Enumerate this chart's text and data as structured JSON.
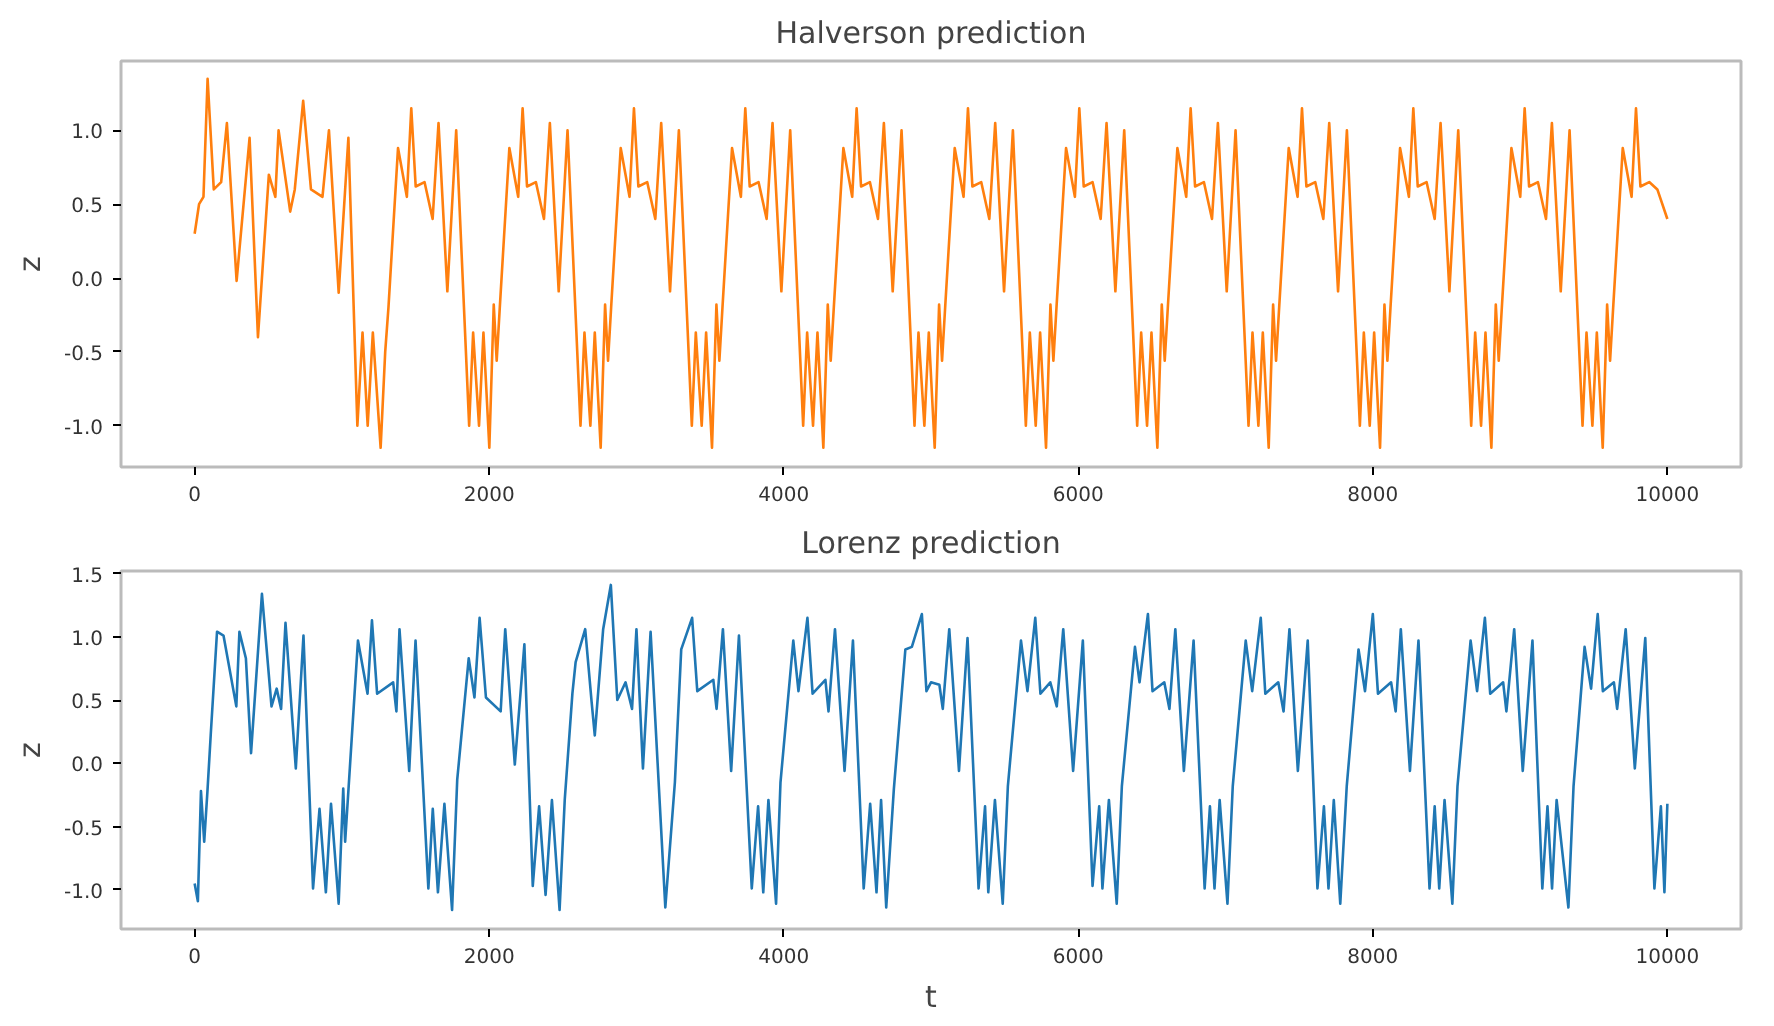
{
  "chart_data": [
    {
      "type": "line",
      "title": "Halverson prediction",
      "ylabel": "z",
      "grid": false,
      "xlim": [
        -500,
        10500
      ],
      "ylim": [
        -1.28,
        1.47
      ],
      "xticks": [
        0,
        2000,
        4000,
        6000,
        8000,
        10000
      ],
      "yticks": [
        {
          "value": -1,
          "label": "-1.0"
        },
        {
          "value": -0.5,
          "label": "-0.5"
        },
        {
          "value": 0,
          "label": "0.0"
        },
        {
          "value": 0.5,
          "label": "0.5"
        },
        {
          "value": 1,
          "label": "1.0"
        }
      ],
      "x": [
        0,
        30,
        60,
        88,
        130,
        180,
        219,
        285,
        373,
        430,
        504,
        548,
        570,
        649,
        680,
        737,
        790,
        868,
        912,
        978,
        1044,
        1105,
        1140,
        1175,
        1210,
        1263,
        1294,
        1316,
        1381,
        1441,
        1471,
        1501,
        1561,
        1616,
        1656,
        1716,
        1776,
        1864,
        1891,
        1931,
        1961,
        2001,
        2031,
        2051,
        2072,
        2137,
        2197,
        2227,
        2257,
        2317,
        2372,
        2412,
        2472,
        2532,
        2620,
        2647,
        2687,
        2717,
        2757,
        2787,
        2807,
        2828,
        2893,
        2953,
        2983,
        3013,
        3073,
        3128,
        3168,
        3228,
        3288,
        3376,
        3403,
        3443,
        3473,
        3513,
        3543,
        3563,
        3584,
        3649,
        3709,
        3739,
        3769,
        3829,
        3884,
        3924,
        3984,
        4044,
        4132,
        4159,
        4199,
        4229,
        4269,
        4299,
        4319,
        4340,
        4405,
        4465,
        4495,
        4525,
        4585,
        4640,
        4680,
        4740,
        4800,
        4888,
        4915,
        4955,
        4985,
        5025,
        5055,
        5075,
        5096,
        5161,
        5221,
        5251,
        5281,
        5341,
        5396,
        5436,
        5496,
        5556,
        5644,
        5671,
        5711,
        5741,
        5781,
        5811,
        5831,
        5852,
        5917,
        5977,
        6007,
        6037,
        6097,
        6152,
        6192,
        6252,
        6312,
        6400,
        6427,
        6467,
        6497,
        6537,
        6567,
        6587,
        6608,
        6673,
        6733,
        6763,
        6793,
        6853,
        6908,
        6948,
        7008,
        7068,
        7156,
        7183,
        7223,
        7253,
        7293,
        7323,
        7343,
        7364,
        7429,
        7489,
        7519,
        7549,
        7609,
        7664,
        7704,
        7764,
        7824,
        7912,
        7939,
        7979,
        8009,
        8049,
        8079,
        8099,
        8120,
        8185,
        8245,
        8275,
        8305,
        8365,
        8420,
        8460,
        8520,
        8580,
        8668,
        8695,
        8735,
        8765,
        8805,
        8835,
        8855,
        8876,
        8941,
        9001,
        9031,
        9061,
        9121,
        9176,
        9216,
        9276,
        9336,
        9424,
        9451,
        9491,
        9521,
        9561,
        9591,
        9611,
        9632,
        9697,
        9757,
        9787,
        9817,
        9877,
        9932,
        10000
      ],
      "series": [
        {
          "color": "#ff7f0e",
          "values": [
            0.3,
            0.5,
            0.55,
            1.35,
            0.6,
            0.65,
            1.05,
            -0.02,
            0.95,
            -0.4,
            0.7,
            0.55,
            1.0,
            0.45,
            0.6,
            1.2,
            0.6,
            0.55,
            1.0,
            -0.1,
            0.95,
            -1.0,
            -0.37,
            -1.0,
            -0.37,
            -1.15,
            -0.5,
            -0.2,
            0.88,
            0.55,
            1.15,
            0.62,
            0.65,
            0.4,
            1.05,
            -0.09,
            1.0,
            -1.0,
            -0.37,
            -1.0,
            -0.37,
            -1.15,
            -0.18,
            -0.56,
            -0.2,
            0.88,
            0.55,
            1.15,
            0.62,
            0.65,
            0.4,
            1.05,
            -0.09,
            1.0,
            -1.0,
            -0.37,
            -1.0,
            -0.37,
            -1.15,
            -0.18,
            -0.56,
            -0.2,
            0.88,
            0.55,
            1.15,
            0.62,
            0.65,
            0.4,
            1.05,
            -0.09,
            1.0,
            -1.0,
            -0.37,
            -1.0,
            -0.37,
            -1.15,
            -0.18,
            -0.56,
            -0.2,
            0.88,
            0.55,
            1.15,
            0.62,
            0.65,
            0.4,
            1.05,
            -0.09,
            1.0,
            -1.0,
            -0.37,
            -1.0,
            -0.37,
            -1.15,
            -0.18,
            -0.56,
            -0.2,
            0.88,
            0.55,
            1.15,
            0.62,
            0.65,
            0.4,
            1.05,
            -0.09,
            1.0,
            -1.0,
            -0.37,
            -1.0,
            -0.37,
            -1.15,
            -0.18,
            -0.56,
            -0.2,
            0.88,
            0.55,
            1.15,
            0.62,
            0.65,
            0.4,
            1.05,
            -0.09,
            1.0,
            -1.0,
            -0.37,
            -1.0,
            -0.37,
            -1.15,
            -0.18,
            -0.56,
            -0.2,
            0.88,
            0.55,
            1.15,
            0.62,
            0.65,
            0.4,
            1.05,
            -0.09,
            1.0,
            -1.0,
            -0.37,
            -1.0,
            -0.37,
            -1.15,
            -0.18,
            -0.56,
            -0.2,
            0.88,
            0.55,
            1.15,
            0.62,
            0.65,
            0.4,
            1.05,
            -0.09,
            1.0,
            -1.0,
            -0.37,
            -1.0,
            -0.37,
            -1.15,
            -0.18,
            -0.56,
            -0.2,
            0.88,
            0.55,
            1.15,
            0.62,
            0.65,
            0.4,
            1.05,
            -0.09,
            1.0,
            -1.0,
            -0.37,
            -1.0,
            -0.37,
            -1.15,
            -0.18,
            -0.56,
            -0.2,
            0.88,
            0.55,
            1.15,
            0.62,
            0.65,
            0.4,
            1.05,
            -0.09,
            1.0,
            -1.0,
            -0.37,
            -1.0,
            -0.37,
            -1.15,
            -0.18,
            -0.56,
            -0.2,
            0.88,
            0.55,
            1.15,
            0.62,
            0.65,
            0.4,
            1.05,
            -0.09,
            1.0,
            -1.0,
            -0.37,
            -1.0,
            -0.37,
            -1.15,
            -0.18,
            -0.56,
            -0.2,
            0.88,
            0.55,
            1.15,
            0.62,
            0.65,
            0.6,
            0.4
          ]
        }
      ]
    },
    {
      "type": "line",
      "title": "Lorenz prediction",
      "xlabel": "t",
      "ylabel": "z",
      "grid": false,
      "xlim": [
        -500,
        10500
      ],
      "ylim": [
        -1.31,
        1.52
      ],
      "xticks": [
        0,
        2000,
        4000,
        6000,
        8000,
        10000
      ],
      "yticks": [
        {
          "value": -1,
          "label": "-1.0"
        },
        {
          "value": -0.5,
          "label": "-0.5"
        },
        {
          "value": 0,
          "label": "0.0"
        },
        {
          "value": 0.5,
          "label": "0.5"
        },
        {
          "value": 1,
          "label": "1.0"
        },
        {
          "value": 1.5,
          "label": "1.5"
        }
      ],
      "x": [
        0,
        22,
        43,
        65,
        87,
        109,
        152,
        196,
        283,
        304,
        348,
        383,
        457,
        522,
        557,
        587,
        617,
        687,
        739,
        804,
        848,
        891,
        926,
        978,
        1009,
        1022,
        1109,
        1174,
        1204,
        1239,
        1348,
        1370,
        1391,
        1457,
        1500,
        1587,
        1617,
        1652,
        1696,
        1748,
        1783,
        1861,
        1900,
        1935,
        1978,
        2078,
        2109,
        2174,
        2239,
        2296,
        2339,
        2383,
        2426,
        2478,
        2513,
        2565,
        2587,
        2652,
        2696,
        2717,
        2774,
        2826,
        2870,
        2926,
        2970,
        3000,
        3044,
        3096,
        3196,
        3261,
        3304,
        3378,
        3413,
        3522,
        3544,
        3587,
        3643,
        3696,
        3783,
        3826,
        3861,
        3896,
        3948,
        3978,
        4065,
        4100,
        4161,
        4196,
        4283,
        4304,
        4348,
        4413,
        4470,
        4543,
        4587,
        4630,
        4661,
        4696,
        4748,
        4826,
        4870,
        4938,
        4969,
        5000,
        5057,
        5080,
        5124,
        5190,
        5248,
        5323,
        5367,
        5389,
        5434,
        5487,
        5522,
        5611,
        5655,
        5708,
        5743,
        5810,
        5854,
        5898,
        5965,
        6031,
        6097,
        6142,
        6164,
        6208,
        6261,
        6296,
        6385,
        6416,
        6473,
        6504,
        6584,
        6619,
        6659,
        6717,
        6783,
        6858,
        6894,
        6925,
        6960,
        7013,
        7049,
        7137,
        7181,
        7239,
        7270,
        7358,
        7394,
        7434,
        7491,
        7558,
        7624,
        7668,
        7699,
        7735,
        7779,
        7823,
        7903,
        7947,
        8000,
        8035,
        8124,
        8155,
        8190,
        8252,
        8310,
        8385,
        8420,
        8451,
        8487,
        8540,
        8575,
        8664,
        8708,
        8761,
        8797,
        8885,
        8907,
        8960,
        9018,
        9084,
        9151,
        9186,
        9217,
        9248,
        9328,
        9363,
        9438,
        9482,
        9527,
        9562,
        9637,
        9659,
        9717,
        9779,
        9850,
        9912,
        9956,
        9980,
        10000
      ],
      "series": [
        {
          "color": "#1f77b4",
          "values": [
            -0.95,
            -1.09,
            -0.22,
            -0.62,
            -0.22,
            0.22,
            1.04,
            1.01,
            0.45,
            1.04,
            0.83,
            0.08,
            1.34,
            0.45,
            0.59,
            0.43,
            1.11,
            -0.04,
            1.01,
            -0.99,
            -0.36,
            -1.02,
            -0.32,
            -1.11,
            -0.2,
            -0.62,
            0.97,
            0.55,
            1.13,
            0.55,
            0.64,
            0.41,
            1.06,
            -0.06,
            0.97,
            -0.99,
            -0.36,
            -1.02,
            -0.32,
            -1.16,
            -0.13,
            0.83,
            0.52,
            1.15,
            0.52,
            0.41,
            1.06,
            -0.01,
            0.94,
            -0.97,
            -0.34,
            -1.04,
            -0.29,
            -1.16,
            -0.29,
            0.55,
            0.8,
            1.06,
            0.48,
            0.22,
            1.06,
            1.41,
            0.5,
            0.64,
            0.43,
            1.06,
            -0.04,
            1.04,
            -1.14,
            -0.15,
            0.9,
            1.15,
            0.57,
            0.66,
            0.43,
            1.06,
            -0.06,
            1.01,
            -0.99,
            -0.34,
            -1.02,
            -0.29,
            -1.11,
            -0.15,
            0.97,
            0.57,
            1.15,
            0.55,
            0.66,
            0.41,
            1.06,
            -0.06,
            0.97,
            -0.99,
            -0.32,
            -1.02,
            -0.29,
            -1.14,
            -0.2,
            0.9,
            0.92,
            1.18,
            0.57,
            0.64,
            0.62,
            0.43,
            1.06,
            -0.06,
            0.99,
            -0.99,
            -0.34,
            -1.02,
            -0.29,
            -1.11,
            -0.18,
            0.97,
            0.57,
            1.15,
            0.55,
            0.64,
            0.45,
            1.06,
            -0.06,
            0.97,
            -0.97,
            -0.34,
            -0.99,
            -0.29,
            -1.11,
            -0.18,
            0.92,
            0.64,
            1.18,
            0.57,
            0.64,
            0.43,
            1.06,
            -0.06,
            0.97,
            -0.99,
            -0.34,
            -0.99,
            -0.29,
            -1.11,
            -0.18,
            0.97,
            0.57,
            1.15,
            0.55,
            0.64,
            0.41,
            1.06,
            -0.06,
            0.97,
            -0.99,
            -0.34,
            -0.99,
            -0.29,
            -1.11,
            -0.18,
            0.9,
            0.57,
            1.18,
            0.55,
            0.64,
            0.41,
            1.06,
            -0.06,
            0.97,
            -0.99,
            -0.34,
            -0.99,
            -0.29,
            -1.11,
            -0.18,
            0.97,
            0.57,
            1.15,
            0.55,
            0.64,
            0.41,
            1.06,
            -0.06,
            0.97,
            -0.99,
            -0.34,
            -0.99,
            -0.29,
            -1.14,
            -0.18,
            0.92,
            0.59,
            1.18,
            0.57,
            0.64,
            0.43,
            1.06,
            -0.04,
            0.99,
            -0.99,
            -0.34,
            -1.02,
            -0.32
          ]
        }
      ]
    }
  ]
}
